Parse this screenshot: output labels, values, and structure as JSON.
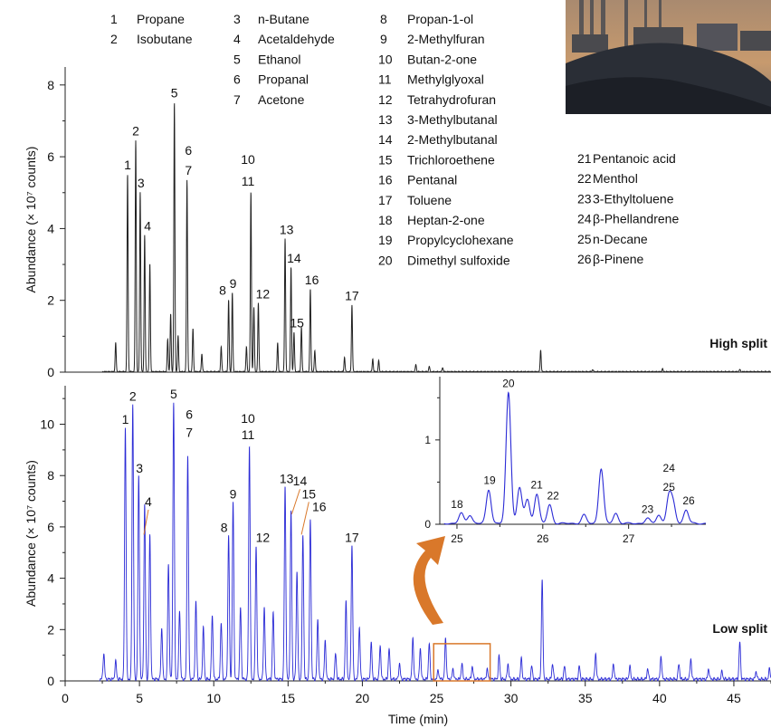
{
  "legend": {
    "col1": [
      {
        "n": "1",
        "name": "Propane"
      },
      {
        "n": "2",
        "name": "Isobutane"
      }
    ],
    "col2": [
      {
        "n": "3",
        "name": "n-Butane"
      },
      {
        "n": "4",
        "name": "Acetaldehyde"
      },
      {
        "n": "5",
        "name": "Ethanol"
      },
      {
        "n": "6",
        "name": "Propanal"
      },
      {
        "n": "7",
        "name": "Acetone"
      }
    ],
    "col3": [
      {
        "n": "8",
        "name": "Propan-1-ol"
      },
      {
        "n": "9",
        "name": "2-Methylfuran"
      },
      {
        "n": "10",
        "name": "Butan-2-one"
      },
      {
        "n": "11",
        "name": "Methylglyoxal"
      },
      {
        "n": "12",
        "name": "Tetrahydrofuran"
      },
      {
        "n": "13",
        "name": "3-Methylbutanal"
      },
      {
        "n": "14",
        "name": "2-Methylbutanal"
      },
      {
        "n": "15",
        "name": "Trichloroethene"
      },
      {
        "n": "16",
        "name": "Pentanal"
      },
      {
        "n": "17",
        "name": "Toluene"
      },
      {
        "n": "18",
        "name": "Heptan-2-one"
      },
      {
        "n": "19",
        "name": "Propylcyclohexane"
      },
      {
        "n": "20",
        "name": "Dimethyl sulfoxide"
      }
    ],
    "col4": [
      {
        "n": "21",
        "name": "Pentanoic acid"
      },
      {
        "n": "22",
        "name": "Menthol"
      },
      {
        "n": "23",
        "name": "3-Ethyltoluene"
      },
      {
        "n": "24",
        "name": "β-Phellandrene"
      },
      {
        "n": "25",
        "name": "n-Decane"
      },
      {
        "n": "26",
        "name": "β-Pinene"
      }
    ]
  },
  "colors": {
    "high": "#222222",
    "low": "#2b2bd6",
    "inset": "#2b2bd6",
    "accent": "#d9782a",
    "photo_sky": "#c79a6e",
    "photo_ground": "#2a2e36"
  },
  "chart_data": [
    {
      "type": "line",
      "name": "high-split",
      "label": "High split",
      "ylabel": "Abundance (× 10⁷ counts)",
      "ylim": [
        0,
        8.5
      ],
      "yticks": [
        "0",
        "2",
        "4",
        "6",
        "8"
      ],
      "xlim": [
        0,
        47.5
      ],
      "peaks": [
        {
          "t": 3.4,
          "h": 0.8
        },
        {
          "t": 4.2,
          "h": 5.5
        },
        {
          "t": 4.75,
          "h": 6.45
        },
        {
          "t": 5.05,
          "h": 5.0
        },
        {
          "t": 5.35,
          "h": 3.8
        },
        {
          "t": 5.7,
          "h": 3.0
        },
        {
          "t": 6.9,
          "h": 0.9
        },
        {
          "t": 7.1,
          "h": 1.6
        },
        {
          "t": 7.35,
          "h": 7.5
        },
        {
          "t": 7.6,
          "h": 1.0
        },
        {
          "t": 8.2,
          "h": 5.35
        },
        {
          "t": 8.6,
          "h": 1.2
        },
        {
          "t": 9.2,
          "h": 0.5
        },
        {
          "t": 10.5,
          "h": 0.7
        },
        {
          "t": 11.0,
          "h": 2.0
        },
        {
          "t": 11.25,
          "h": 2.2
        },
        {
          "t": 12.2,
          "h": 0.7
        },
        {
          "t": 12.5,
          "h": 5.0
        },
        {
          "t": 12.7,
          "h": 1.8
        },
        {
          "t": 13.0,
          "h": 1.9
        },
        {
          "t": 14.3,
          "h": 0.8
        },
        {
          "t": 14.8,
          "h": 3.7
        },
        {
          "t": 15.2,
          "h": 2.9
        },
        {
          "t": 15.4,
          "h": 1.1
        },
        {
          "t": 15.9,
          "h": 1.25
        },
        {
          "t": 16.5,
          "h": 2.3
        },
        {
          "t": 16.8,
          "h": 0.6
        },
        {
          "t": 18.8,
          "h": 0.4
        },
        {
          "t": 19.3,
          "h": 1.85
        },
        {
          "t": 20.7,
          "h": 0.35
        },
        {
          "t": 21.1,
          "h": 0.3
        },
        {
          "t": 23.6,
          "h": 0.2
        },
        {
          "t": 24.5,
          "h": 0.15
        },
        {
          "t": 25.4,
          "h": 0.12
        },
        {
          "t": 32.0,
          "h": 0.6
        },
        {
          "t": 35.5,
          "h": 0.06
        },
        {
          "t": 40.2,
          "h": 0.08
        },
        {
          "t": 45.4,
          "h": 0.06
        }
      ],
      "annotations": [
        {
          "label": "1",
          "t": 4.2,
          "h": 5.5
        },
        {
          "label": "2",
          "t": 4.75,
          "h": 6.45
        },
        {
          "label": "3",
          "t": 5.1,
          "h": 5.0
        },
        {
          "label": "4",
          "t": 5.55,
          "h": 3.8
        },
        {
          "label": "5",
          "t": 7.35,
          "h": 7.5
        },
        {
          "label": "6",
          "t": 8.3,
          "h": 5.9
        },
        {
          "label": "7",
          "t": 8.3,
          "h": 5.35
        },
        {
          "label": "8",
          "t": 10.6,
          "h": 2.0
        },
        {
          "label": "9",
          "t": 11.3,
          "h": 2.2
        },
        {
          "label": "10",
          "t": 12.3,
          "h": 5.65
        },
        {
          "label": "11",
          "t": 12.3,
          "h": 5.05
        },
        {
          "label": "12",
          "t": 13.3,
          "h": 1.9
        },
        {
          "label": "13",
          "t": 14.9,
          "h": 3.7
        },
        {
          "label": "14",
          "t": 15.4,
          "h": 2.9
        },
        {
          "label": "15",
          "t": 15.6,
          "h": 1.1
        },
        {
          "label": "16",
          "t": 16.6,
          "h": 2.3
        },
        {
          "label": "17",
          "t": 19.3,
          "h": 1.85
        }
      ]
    },
    {
      "type": "line",
      "name": "low-split",
      "label": "Low split",
      "ylabel": "Abundance (× 10⁷ counts)",
      "xlabel": "Time (min)",
      "ylim": [
        0,
        11.5
      ],
      "yticks": [
        "0",
        "2",
        "4",
        "6",
        "8",
        "10"
      ],
      "xlim": [
        0,
        47.5
      ],
      "xticks": [
        "0",
        "5",
        "10",
        "15",
        "20",
        "25",
        "30",
        "35",
        "40",
        "45"
      ],
      "peaks": [
        {
          "t": 2.6,
          "h": 1.0
        },
        {
          "t": 3.4,
          "h": 0.7
        },
        {
          "t": 4.05,
          "h": 9.8
        },
        {
          "t": 4.55,
          "h": 10.7
        },
        {
          "t": 4.95,
          "h": 7.9
        },
        {
          "t": 5.35,
          "h": 6.8
        },
        {
          "t": 5.7,
          "h": 5.6
        },
        {
          "t": 6.5,
          "h": 2.0
        },
        {
          "t": 6.95,
          "h": 4.5
        },
        {
          "t": 7.3,
          "h": 10.8
        },
        {
          "t": 7.7,
          "h": 2.7
        },
        {
          "t": 8.25,
          "h": 8.7
        },
        {
          "t": 8.8,
          "h": 3.0
        },
        {
          "t": 9.3,
          "h": 2.0
        },
        {
          "t": 9.9,
          "h": 2.5
        },
        {
          "t": 10.5,
          "h": 2.2
        },
        {
          "t": 11.0,
          "h": 5.6
        },
        {
          "t": 11.3,
          "h": 6.9
        },
        {
          "t": 11.8,
          "h": 2.8
        },
        {
          "t": 12.4,
          "h": 9.1
        },
        {
          "t": 12.85,
          "h": 5.2
        },
        {
          "t": 13.4,
          "h": 2.8
        },
        {
          "t": 14.0,
          "h": 2.6
        },
        {
          "t": 14.8,
          "h": 7.5
        },
        {
          "t": 15.2,
          "h": 6.5
        },
        {
          "t": 15.6,
          "h": 4.2
        },
        {
          "t": 16.0,
          "h": 5.6
        },
        {
          "t": 16.5,
          "h": 6.2
        },
        {
          "t": 17.0,
          "h": 2.3
        },
        {
          "t": 17.5,
          "h": 1.5
        },
        {
          "t": 18.2,
          "h": 1.0
        },
        {
          "t": 18.9,
          "h": 3.0
        },
        {
          "t": 19.3,
          "h": 5.2
        },
        {
          "t": 19.8,
          "h": 2.0
        },
        {
          "t": 20.6,
          "h": 1.4
        },
        {
          "t": 21.2,
          "h": 1.3
        },
        {
          "t": 21.8,
          "h": 1.2
        },
        {
          "t": 22.5,
          "h": 0.6
        },
        {
          "t": 23.4,
          "h": 1.6
        },
        {
          "t": 23.9,
          "h": 1.2
        },
        {
          "t": 24.5,
          "h": 1.4
        },
        {
          "t": 25.1,
          "h": 0.35
        },
        {
          "t": 25.6,
          "h": 1.6
        },
        {
          "t": 26.1,
          "h": 0.4
        },
        {
          "t": 26.7,
          "h": 0.6
        },
        {
          "t": 27.4,
          "h": 0.5
        },
        {
          "t": 28.4,
          "h": 0.4
        },
        {
          "t": 29.2,
          "h": 0.9
        },
        {
          "t": 29.8,
          "h": 0.6
        },
        {
          "t": 30.7,
          "h": 0.8
        },
        {
          "t": 31.4,
          "h": 0.5
        },
        {
          "t": 32.1,
          "h": 3.85
        },
        {
          "t": 32.8,
          "h": 0.6
        },
        {
          "t": 33.6,
          "h": 0.5
        },
        {
          "t": 34.6,
          "h": 0.5
        },
        {
          "t": 35.7,
          "h": 1.0
        },
        {
          "t": 36.9,
          "h": 0.6
        },
        {
          "t": 38.0,
          "h": 0.5
        },
        {
          "t": 39.2,
          "h": 0.4
        },
        {
          "t": 40.1,
          "h": 0.9
        },
        {
          "t": 41.3,
          "h": 0.6
        },
        {
          "t": 42.1,
          "h": 0.8
        },
        {
          "t": 43.3,
          "h": 0.4
        },
        {
          "t": 44.2,
          "h": 0.3
        },
        {
          "t": 45.4,
          "h": 1.45
        },
        {
          "t": 46.5,
          "h": 0.3
        },
        {
          "t": 47.4,
          "h": 0.4
        }
      ],
      "annotations": [
        {
          "label": "1",
          "t": 4.05,
          "h": 9.8
        },
        {
          "label": "2",
          "t": 4.55,
          "h": 10.7
        },
        {
          "label": "3",
          "t": 5.0,
          "h": 7.9
        },
        {
          "label": "4",
          "t": 5.6,
          "h": 6.6
        },
        {
          "label": "5",
          "t": 7.3,
          "h": 10.8
        },
        {
          "label": "6",
          "t": 8.35,
          "h": 10.0
        },
        {
          "label": "7",
          "t": 8.35,
          "h": 9.3
        },
        {
          "label": "8",
          "t": 10.7,
          "h": 5.6
        },
        {
          "label": "9",
          "t": 11.3,
          "h": 6.9
        },
        {
          "label": "10",
          "t": 12.3,
          "h": 9.85
        },
        {
          "label": "11",
          "t": 12.3,
          "h": 9.2
        },
        {
          "label": "12",
          "t": 13.3,
          "h": 5.2
        },
        {
          "label": "13",
          "t": 14.9,
          "h": 7.5
        },
        {
          "label": "14",
          "t": 15.8,
          "h": 7.4
        },
        {
          "label": "15",
          "t": 16.4,
          "h": 6.9
        },
        {
          "label": "16",
          "t": 17.1,
          "h": 6.4
        },
        {
          "label": "17",
          "t": 19.3,
          "h": 5.2
        }
      ],
      "highlight": {
        "t0": 24.8,
        "t1": 28.6,
        "h": 1.45
      }
    },
    {
      "type": "line",
      "name": "inset",
      "xlim": [
        24.8,
        27.9
      ],
      "ylim": [
        0,
        1.75
      ],
      "xticks": [
        "25",
        "26",
        "27"
      ],
      "yticks": [
        "0",
        "1"
      ],
      "peaks": [
        {
          "t": 25.05,
          "h": 0.12
        },
        {
          "t": 25.15,
          "h": 0.1
        },
        {
          "t": 25.37,
          "h": 0.4
        },
        {
          "t": 25.6,
          "h": 1.55
        },
        {
          "t": 25.73,
          "h": 0.42
        },
        {
          "t": 25.82,
          "h": 0.28
        },
        {
          "t": 25.93,
          "h": 0.35
        },
        {
          "t": 26.08,
          "h": 0.22
        },
        {
          "t": 26.48,
          "h": 0.1
        },
        {
          "t": 26.68,
          "h": 0.65
        },
        {
          "t": 26.85,
          "h": 0.12
        },
        {
          "t": 27.22,
          "h": 0.06
        },
        {
          "t": 27.35,
          "h": 0.1
        },
        {
          "t": 27.47,
          "h": 0.32
        },
        {
          "t": 27.52,
          "h": 0.22
        },
        {
          "t": 27.67,
          "h": 0.16
        }
      ],
      "annotations": [
        {
          "label": "18",
          "t": 25.0,
          "h": 0.12
        },
        {
          "label": "19",
          "t": 25.38,
          "h": 0.4
        },
        {
          "label": "20",
          "t": 25.6,
          "h": 1.55
        },
        {
          "label": "21",
          "t": 25.93,
          "h": 0.35
        },
        {
          "label": "22",
          "t": 26.12,
          "h": 0.22
        },
        {
          "label": "23",
          "t": 27.22,
          "h": 0.06
        },
        {
          "label": "24",
          "t": 27.47,
          "h": 0.55
        },
        {
          "label": "25",
          "t": 27.47,
          "h": 0.32
        },
        {
          "label": "26",
          "t": 27.7,
          "h": 0.16
        }
      ]
    }
  ]
}
